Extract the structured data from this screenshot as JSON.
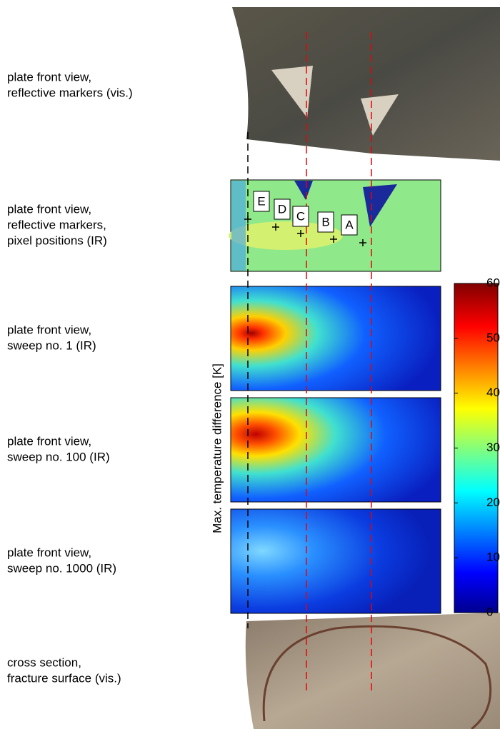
{
  "rows": [
    [
      "plate front view,",
      "reflective markers (vis.)"
    ],
    [
      "plate front view,",
      "reflective markers,",
      "pixel positions (IR)"
    ],
    [
      "plate front view,",
      "sweep no. 1 (IR)"
    ],
    [
      "plate front view,",
      "sweep no. 100 (IR)"
    ],
    [
      "plate front view,",
      "sweep no. 1000 (IR)"
    ],
    [
      "cross section,",
      "fracture surface (vis.)"
    ]
  ],
  "markers": [
    "E",
    "D",
    "C",
    "B",
    "A"
  ],
  "colorbar": {
    "label": "Max. temperature difference [K]",
    "lim": [
      0,
      60
    ],
    "ticks": [
      0,
      10,
      20,
      30,
      40,
      50,
      60
    ]
  }
}
